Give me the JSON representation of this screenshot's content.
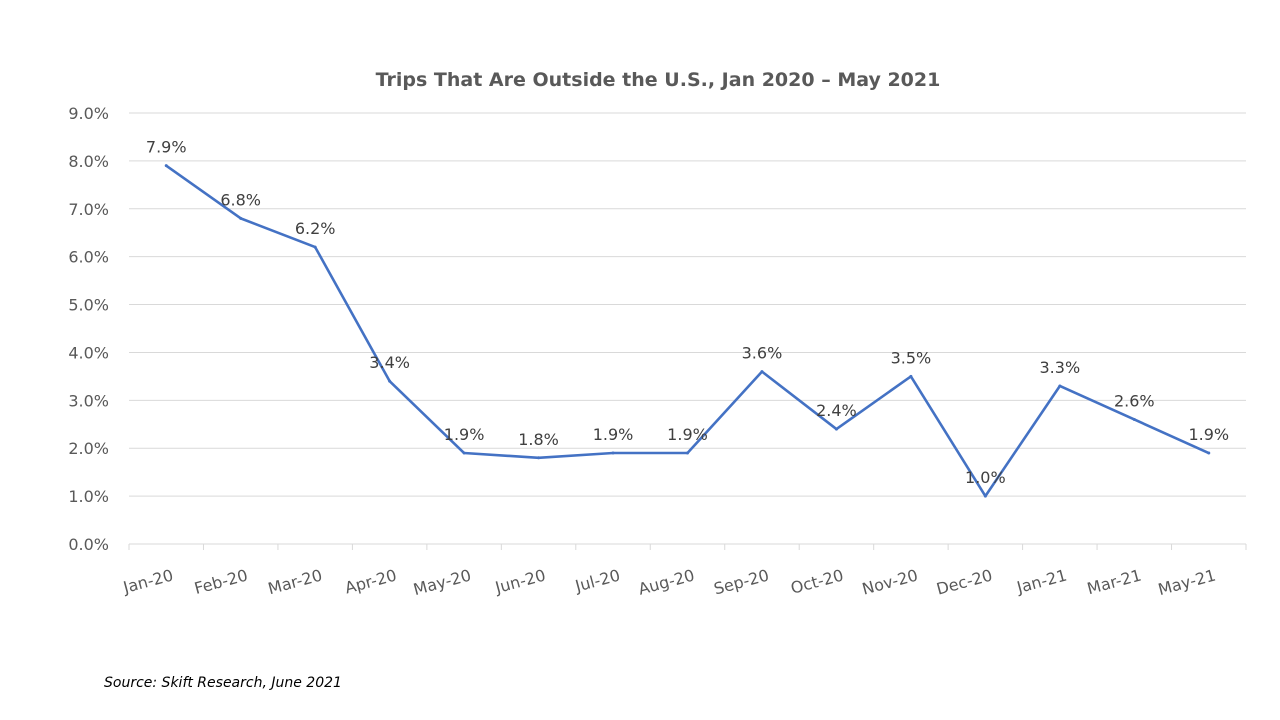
{
  "chart_data": {
    "type": "line",
    "title": "Trips That Are Outside the U.S., Jan 2020 – May 2021",
    "categories": [
      "Jan-20",
      "Feb-20",
      "Mar-20",
      "Apr-20",
      "May-20",
      "Jun-20",
      "Jul-20",
      "Aug-20",
      "Sep-20",
      "Oct-20",
      "Nov-20",
      "Dec-20",
      "Jan-21",
      "Mar-21",
      "May-21"
    ],
    "series": [
      {
        "values": [
          7.9,
          6.8,
          6.2,
          3.4,
          1.9,
          1.8,
          1.9,
          1.9,
          3.6,
          2.4,
          3.5,
          1.0,
          3.3,
          2.6,
          1.9
        ],
        "labels": [
          "7.9%",
          "6.8%",
          "6.2%",
          "3.4%",
          "1.9%",
          "1.8%",
          "1.9%",
          "1.9%",
          "3.6%",
          "2.4%",
          "3.5%",
          "1.0%",
          "3.3%",
          "2.6%",
          "1.9%"
        ],
        "color": "#4472c4"
      }
    ],
    "yticks": [
      "0.0%",
      "1.0%",
      "2.0%",
      "3.0%",
      "4.0%",
      "5.0%",
      "6.0%",
      "7.0%",
      "8.0%",
      "9.0%"
    ],
    "ylim": [
      0,
      9
    ],
    "xlabel": "",
    "ylabel": "",
    "grid": true,
    "legend": "none"
  },
  "source_note": "Source: Skift Research, June 2021"
}
